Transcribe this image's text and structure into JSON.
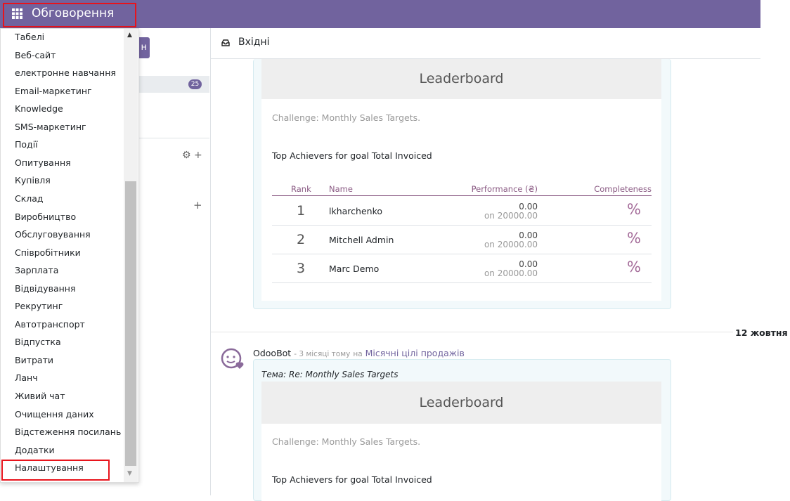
{
  "header": {
    "app_title": "Обговорення"
  },
  "app_menu": {
    "items": [
      "Табелі",
      "Веб-сайт",
      "електронне навчання",
      "Email-маркетинг",
      "Knowledge",
      "SMS-маркетинг",
      "Події",
      "Опитування",
      "Купівля",
      "Склад",
      "Виробництво",
      "Обслуговування",
      "Співробітники",
      "Зарплата",
      "Відвідування",
      "Рекрутинг",
      "Автотранспорт",
      "Відпустка",
      "Витрати",
      "Ланч",
      "Живий чат",
      "Очищення даних",
      "Відстеження посилань",
      "Додатки",
      "Налаштування"
    ]
  },
  "sidebar": {
    "button_text": "н",
    "inbox_counter": 25
  },
  "inbox": {
    "title": "Вхідні"
  },
  "first_message": {
    "leaderboard": {
      "title": "Leaderboard",
      "challenge": "Challenge: Monthly Sales Targets.",
      "goal": "Top Achievers for goal Total Invoiced",
      "columns": [
        "Rank",
        "Name",
        "Performance (₴)",
        "Completeness"
      ],
      "rows": [
        {
          "rank": 1,
          "name": "lkharchenko",
          "performance": "0.00",
          "target": "on 20000.00",
          "completeness": "%"
        },
        {
          "rank": 2,
          "name": "Mitchell Admin",
          "performance": "0.00",
          "target": "on 20000.00",
          "completeness": "%"
        },
        {
          "rank": 3,
          "name": "Marc Demo",
          "performance": "0.00",
          "target": "on 20000.00",
          "completeness": "%"
        }
      ]
    }
  },
  "date_separator": "12 жовтня",
  "second_message": {
    "author": "OdooBot",
    "time": "- 3 місяці тому",
    "on": "на",
    "record": "Місячні цілі продажів",
    "subject": "Тема: Re: Monthly Sales Targets",
    "leaderboard": {
      "title": "Leaderboard",
      "challenge": "Challenge: Monthly Sales Targets.",
      "goal": "Top Achievers for goal Total Invoiced"
    }
  }
}
